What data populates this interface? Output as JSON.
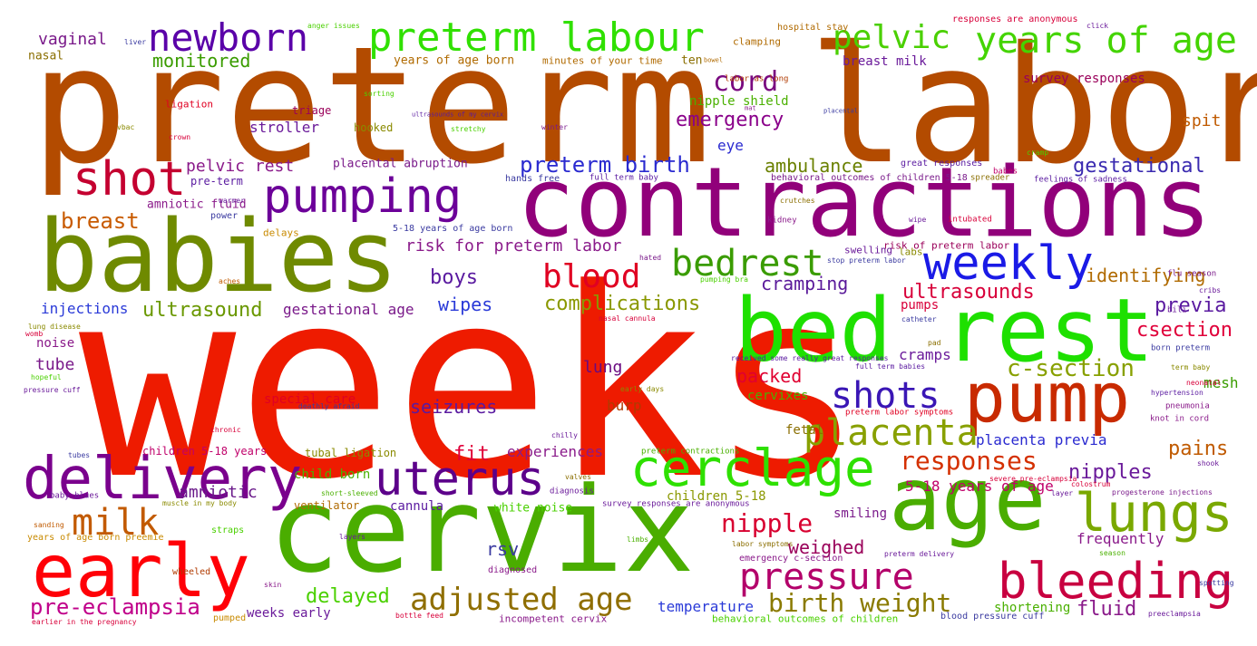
{
  "words": [
    {
      "text": "weeks",
      "color": "#ee1b00"
    },
    {
      "text": "preterm labor",
      "color": "#b34b00"
    },
    {
      "text": "contractions",
      "color": "#91007a"
    },
    {
      "text": "babies",
      "color": "#6f8a00"
    },
    {
      "text": "cervix",
      "color": "#4aad00"
    },
    {
      "text": "bed rest",
      "color": "#1ee000"
    },
    {
      "text": "age",
      "color": "#4aad00"
    },
    {
      "text": "pump",
      "color": "#c82a00"
    },
    {
      "text": "early",
      "color": "#ff0007"
    },
    {
      "text": "delivery",
      "color": "#7a008d"
    },
    {
      "text": "uterus",
      "color": "#5c008a"
    },
    {
      "text": "cerclage",
      "color": "#2ee000"
    },
    {
      "text": "lungs",
      "color": "#7aa800"
    },
    {
      "text": "bleeding",
      "color": "#c80040"
    },
    {
      "text": "weekly",
      "color": "#1a1ae6"
    },
    {
      "text": "pumping",
      "color": "#6c0099"
    },
    {
      "text": "shot",
      "color": "#c40030"
    },
    {
      "text": "pressure",
      "color": "#b3006a"
    },
    {
      "text": "milk",
      "color": "#c25a00"
    },
    {
      "text": "shots",
      "color": "#3a16b5"
    },
    {
      "text": "placenta",
      "color": "#88a000"
    },
    {
      "text": "preterm labour",
      "color": "#30e000"
    },
    {
      "text": "years of age",
      "color": "#44d400"
    },
    {
      "text": "newborn",
      "color": "#5a00a8"
    },
    {
      "text": "pelvic",
      "color": "#4ad000"
    },
    {
      "text": "bedrest",
      "color": "#3a9c00"
    },
    {
      "text": "blood",
      "color": "#e00022"
    },
    {
      "text": "adjusted age",
      "color": "#8f6e00"
    },
    {
      "text": "birth weight",
      "color": "#8a7a00"
    },
    {
      "text": "responses",
      "color": "#d43000"
    },
    {
      "text": "nipple",
      "color": "#d80030"
    },
    {
      "text": "cord",
      "color": "#7a0a80"
    },
    {
      "text": "preterm birth",
      "color": "#2a2ad0"
    },
    {
      "text": "emergency",
      "color": "#8a008a"
    },
    {
      "text": "c-section",
      "color": "#88a000"
    },
    {
      "text": "ultrasounds",
      "color": "#d8003a"
    },
    {
      "text": "gestational",
      "color": "#3a2ab0"
    },
    {
      "text": "csection",
      "color": "#e0003a"
    },
    {
      "text": "previa",
      "color": "#5a1aa0"
    },
    {
      "text": "identifying",
      "color": "#b06a00"
    },
    {
      "text": "breast",
      "color": "#c85a00"
    },
    {
      "text": "ultrasound",
      "color": "#6a9800"
    },
    {
      "text": "pre-eclampsia",
      "color": "#c0008a"
    },
    {
      "text": "complications",
      "color": "#8a9800"
    },
    {
      "text": "delayed",
      "color": "#4ad000"
    },
    {
      "text": "nipples",
      "color": "#6a1a9a"
    },
    {
      "text": "cramping",
      "color": "#5a1a9a"
    },
    {
      "text": "pains",
      "color": "#c05a00"
    },
    {
      "text": "fluid",
      "color": "#8a1a9a"
    },
    {
      "text": "fit",
      "color": "#e0003a"
    },
    {
      "text": "seizures",
      "color": "#5a1aa0"
    },
    {
      "text": "boys",
      "color": "#5a1aa0"
    },
    {
      "text": "packed",
      "color": "#e00030"
    },
    {
      "text": "amniotic",
      "color": "#6a1a8a"
    },
    {
      "text": "weighed",
      "color": "#9a005a"
    },
    {
      "text": "rsv",
      "color": "#3a3aa0"
    },
    {
      "text": "ambulance",
      "color": "#6a8000"
    },
    {
      "text": "monitored",
      "color": "#3a9c00"
    },
    {
      "text": "vaginal",
      "color": "#7a1a8a"
    },
    {
      "text": "wipes",
      "color": "#2a3ad8"
    },
    {
      "text": "lung",
      "color": "#6a0a80"
    },
    {
      "text": "risk for preterm labor",
      "color": "#8a1a8a"
    },
    {
      "text": "pelvic rest",
      "color": "#8a1a8a"
    },
    {
      "text": "placenta previa",
      "color": "#2a2ad0"
    },
    {
      "text": "gestational age",
      "color": "#7a1a8a"
    },
    {
      "text": "stroller",
      "color": "#6a1a9a"
    },
    {
      "text": "injections",
      "color": "#2a3ad8"
    },
    {
      "text": "tube",
      "color": "#7a1a8a"
    },
    {
      "text": "noise",
      "color": "#8a1a8a"
    },
    {
      "text": "cramps",
      "color": "#6a1a9a"
    },
    {
      "text": "spit",
      "color": "#c05a00"
    },
    {
      "text": "mesh",
      "color": "#3a9c00"
    },
    {
      "text": "smiling",
      "color": "#7a1a8a"
    },
    {
      "text": "frequently",
      "color": "#8a1a8a"
    },
    {
      "text": "5-18 years of age",
      "color": "#c0006a"
    },
    {
      "text": "children 5-18",
      "color": "#8a9800"
    },
    {
      "text": "temperature",
      "color": "#2a3ad8"
    },
    {
      "text": "weeks early",
      "color": "#6a1a9a"
    },
    {
      "text": "shortening",
      "color": "#4ab000"
    },
    {
      "text": "special care",
      "color": "#e00022"
    },
    {
      "text": "burp",
      "color": "#b03a00"
    },
    {
      "text": "eye",
      "color": "#2a2ad0"
    },
    {
      "text": "pumps",
      "color": "#d8003a"
    },
    {
      "text": "experiences",
      "color": "#8a1a8a"
    },
    {
      "text": "child born",
      "color": "#4ab000"
    },
    {
      "text": "cannula",
      "color": "#5a1aa0"
    },
    {
      "text": "cervixes",
      "color": "#4ab000"
    },
    {
      "text": "fetal",
      "color": "#8a6e00"
    },
    {
      "text": "breast milk",
      "color": "#6a1a9a"
    },
    {
      "text": "nipple shield",
      "color": "#4ab000"
    },
    {
      "text": "survey responses",
      "color": "#9a005a"
    },
    {
      "text": "years of age born",
      "color": "#b06a00"
    },
    {
      "text": "hooked",
      "color": "#8a8a00"
    },
    {
      "text": "triage",
      "color": "#9a005a"
    },
    {
      "text": "ligation",
      "color": "#e00022"
    },
    {
      "text": "nasal",
      "color": "#8a6e00"
    },
    {
      "text": "amniotic fluid",
      "color": "#8a1a8a"
    },
    {
      "text": "placental abruption",
      "color": "#7a1a8a"
    },
    {
      "text": "pre-term",
      "color": "#5a1aa0"
    },
    {
      "text": "ten",
      "color": "#8a6e00"
    },
    {
      "text": "tubal ligation",
      "color": "#8a8a00"
    },
    {
      "text": "children 5-18 years",
      "color": "#c0006a"
    },
    {
      "text": "ventilator",
      "color": "#b06a00"
    },
    {
      "text": "white noise",
      "color": "#4ad000"
    },
    {
      "text": "incompetent cervix",
      "color": "#8a1a8a"
    },
    {
      "text": "delays",
      "color": "#c88a00"
    },
    {
      "text": "power",
      "color": "#3a3aa0"
    },
    {
      "text": "clamping",
      "color": "#b06a00"
    },
    {
      "text": "hospital stay",
      "color": "#b06a00"
    },
    {
      "text": "responses are anonymous",
      "color": "#d8003a"
    },
    {
      "text": "minutes of your time",
      "color": "#b06a00"
    },
    {
      "text": "labor as long",
      "color": "#b03a00"
    },
    {
      "text": "risk of preterm labor",
      "color": "#9a005a"
    },
    {
      "text": "labs",
      "color": "#8a8a00"
    },
    {
      "text": "swelling",
      "color": "#6a1a9a"
    },
    {
      "text": "great responses",
      "color": "#5a1aa0"
    },
    {
      "text": "5-18 years of age born",
      "color": "#3a3aa0"
    },
    {
      "text": "behavioral outcomes of children 5-18",
      "color": "#7a1a8a"
    },
    {
      "text": "born preterm",
      "color": "#3a3aa0"
    },
    {
      "text": "flu season",
      "color": "#7a1a8a"
    },
    {
      "text": "stop preterm labor",
      "color": "#3a3aa0"
    },
    {
      "text": "hands free",
      "color": "#3a3aa0"
    },
    {
      "text": "full term baby",
      "color": "#5a1aa0"
    },
    {
      "text": "babes",
      "color": "#c0006a"
    },
    {
      "text": "spreader",
      "color": "#8a6e00"
    },
    {
      "text": "intubated",
      "color": "#d8003a"
    },
    {
      "text": "feelings of sadness",
      "color": "#5a1aa0"
    },
    {
      "text": "bili",
      "color": "#6a1a9a"
    },
    {
      "text": "cribs",
      "color": "#6a1a9a"
    },
    {
      "text": "catheter",
      "color": "#3a3aa0"
    },
    {
      "text": "neonatal",
      "color": "#d8003a"
    },
    {
      "text": "hypertension",
      "color": "#5a1aa0"
    },
    {
      "text": "pneumonia",
      "color": "#8a1a8a"
    },
    {
      "text": "knot in cord",
      "color": "#8a1a8a"
    },
    {
      "text": "term baby",
      "color": "#8a8a00"
    },
    {
      "text": "kidney",
      "color": "#8a1a8a"
    },
    {
      "text": "wipe",
      "color": "#6a1a9a"
    },
    {
      "text": "pad",
      "color": "#8a6e00"
    },
    {
      "text": "crutches",
      "color": "#8a6e00"
    },
    {
      "text": "nasal cannula",
      "color": "#d8003a"
    },
    {
      "text": "catheter",
      "color": "#3a3aa0"
    },
    {
      "text": "received some really great responses",
      "color": "#5a1aa0"
    },
    {
      "text": "full term babies",
      "color": "#5a1aa0"
    },
    {
      "text": "preterm labor symptoms",
      "color": "#e00022"
    },
    {
      "text": "chilly",
      "color": "#6a1a9a"
    },
    {
      "text": "early days",
      "color": "#8a8a00"
    },
    {
      "text": "deathly afraid",
      "color": "#3a3aa0"
    },
    {
      "text": "preterm contractions",
      "color": "#4ab000"
    },
    {
      "text": "valves",
      "color": "#8a6e00"
    },
    {
      "text": "diagnosis",
      "color": "#6a1a9a"
    },
    {
      "text": "survey responses are anonymous",
      "color": "#6a1a9a"
    },
    {
      "text": "severe pre-eclampsia",
      "color": "#d8003a"
    },
    {
      "text": "progesterone injections",
      "color": "#7a1a8a"
    },
    {
      "text": "colostrum",
      "color": "#d8003a"
    },
    {
      "text": "shook",
      "color": "#6a1a9a"
    },
    {
      "text": "layer",
      "color": "#6a1a9a"
    },
    {
      "text": "baby blues",
      "color": "#6a1a9a"
    },
    {
      "text": "muscle in my body",
      "color": "#8a8a00"
    },
    {
      "text": "short-sleeved",
      "color": "#4ab000"
    },
    {
      "text": "straps",
      "color": "#4ad000"
    },
    {
      "text": "sanding",
      "color": "#c05a00"
    },
    {
      "text": "years of age born preemie",
      "color": "#c88a00"
    },
    {
      "text": "layers",
      "color": "#6a1a9a"
    },
    {
      "text": "limbs",
      "color": "#4ab000"
    },
    {
      "text": "labor symptoms",
      "color": "#8a6e00"
    },
    {
      "text": "preterm delivery",
      "color": "#6a1a9a"
    },
    {
      "text": "season",
      "color": "#4ab000"
    },
    {
      "text": "spotting",
      "color": "#3a3aa0"
    },
    {
      "text": "wheeled",
      "color": "#b03a00"
    },
    {
      "text": "diagnosed",
      "color": "#8a1a8a"
    },
    {
      "text": "emergency c-section",
      "color": "#8a1a8a"
    },
    {
      "text": "skin",
      "color": "#8a1a8a"
    },
    {
      "text": "pumped",
      "color": "#c88a00"
    },
    {
      "text": "bottle feed",
      "color": "#d8003a"
    },
    {
      "text": "behavioral outcomes of children",
      "color": "#4ad000"
    },
    {
      "text": "blood pressure cuff",
      "color": "#3a3aa0"
    },
    {
      "text": "preeclampsia",
      "color": "#6a1a9a"
    },
    {
      "text": "earlier in the pregnancy",
      "color": "#d8003a"
    },
    {
      "text": "chronic",
      "color": "#d8003a"
    },
    {
      "text": "tubes",
      "color": "#3a3aa0"
    },
    {
      "text": "pressure cuff",
      "color": "#6a1a9a"
    },
    {
      "text": "hopeful",
      "color": "#4ad000"
    },
    {
      "text": "womb",
      "color": "#d8003a"
    },
    {
      "text": "lung disease",
      "color": "#8a8a00"
    },
    {
      "text": "aches",
      "color": "#c05a00"
    },
    {
      "text": "warmer",
      "color": "#6a1a9a"
    },
    {
      "text": "vbac",
      "color": "#8a8a00"
    },
    {
      "text": "crown",
      "color": "#d8003a"
    },
    {
      "text": "winter",
      "color": "#7a1a8a"
    },
    {
      "text": "stretchy",
      "color": "#4ad000"
    },
    {
      "text": "sorting",
      "color": "#4ad000"
    },
    {
      "text": "anger issues",
      "color": "#4ad000"
    },
    {
      "text": "liver",
      "color": "#3a3aa0"
    },
    {
      "text": "bowel",
      "color": "#b06a00"
    },
    {
      "text": "click",
      "color": "#6a1a9a"
    },
    {
      "text": "placental",
      "color": "#3a3aa0"
    },
    {
      "text": "mat",
      "color": "#8a1a8a"
    },
    {
      "text": "ultrasounds of my cervix",
      "color": "#5a1aa0"
    },
    {
      "text": "cramp",
      "color": "#4ad000"
    },
    {
      "text": "hated",
      "color": "#7a1a8a"
    },
    {
      "text": "pumping bra",
      "color": "#4ad000"
    }
  ]
}
